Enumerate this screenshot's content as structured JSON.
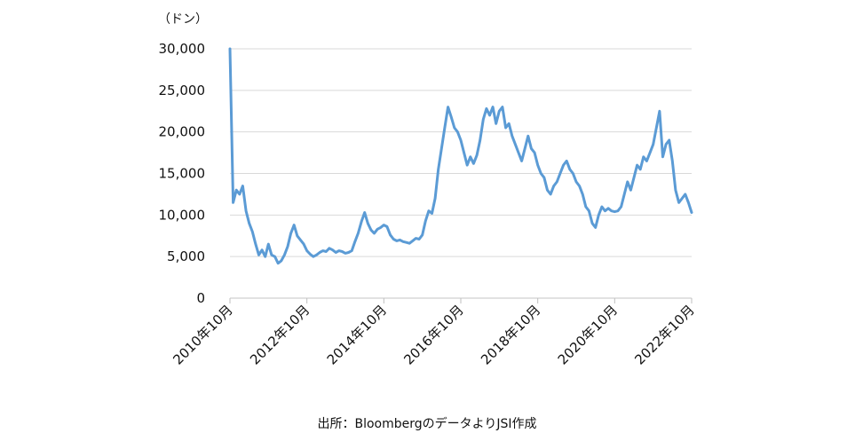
{
  "chart_data": {
    "type": "line",
    "title": "",
    "unit_label": "（ドン）",
    "xlabel": "",
    "ylabel": "",
    "ylim": [
      0,
      30000
    ],
    "yticks": [
      0,
      5000,
      10000,
      15000,
      20000,
      25000,
      30000
    ],
    "ytick_labels": [
      "0",
      "5,000",
      "10,000",
      "15,000",
      "20,000",
      "25,000",
      "30,000"
    ],
    "xlim": [
      "2010-10",
      "2022-10"
    ],
    "xtick_labels": [
      "2010年10月",
      "2012年10月",
      "2014年10月",
      "2016年10月",
      "2018年10月",
      "2020年10月",
      "2022年10月"
    ],
    "grid": "horizontal",
    "legend": "none",
    "line_color": "#5B9BD5",
    "source_note": "出所：BloombergのデータよりJSI作成",
    "series": [
      {
        "x": [
          "2010-10",
          "2010-11",
          "2010-12",
          "2011-01",
          "2011-02",
          "2011-03",
          "2011-04",
          "2011-05",
          "2011-06",
          "2011-07",
          "2011-08",
          "2011-09",
          "2011-10",
          "2011-11",
          "2011-12",
          "2012-01",
          "2012-02",
          "2012-03",
          "2012-04",
          "2012-05",
          "2012-06",
          "2012-07",
          "2012-08",
          "2012-09",
          "2012-10",
          "2012-11",
          "2012-12",
          "2013-01",
          "2013-02",
          "2013-03",
          "2013-04",
          "2013-05",
          "2013-06",
          "2013-07",
          "2013-08",
          "2013-09",
          "2013-10",
          "2013-11",
          "2013-12",
          "2014-01",
          "2014-02",
          "2014-03",
          "2014-04",
          "2014-05",
          "2014-06",
          "2014-07",
          "2014-08",
          "2014-09",
          "2014-10",
          "2014-11",
          "2014-12",
          "2015-01",
          "2015-02",
          "2015-03",
          "2015-04",
          "2015-05",
          "2015-06",
          "2015-07",
          "2015-08",
          "2015-09",
          "2015-10",
          "2015-11",
          "2015-12",
          "2016-01",
          "2016-02",
          "2016-03",
          "2016-04",
          "2016-05",
          "2016-06",
          "2016-07",
          "2016-08",
          "2016-09",
          "2016-10",
          "2016-11",
          "2016-12",
          "2017-01",
          "2017-02",
          "2017-03",
          "2017-04",
          "2017-05",
          "2017-06",
          "2017-07",
          "2017-08",
          "2017-09",
          "2017-10",
          "2017-11",
          "2017-12",
          "2018-01",
          "2018-02",
          "2018-03",
          "2018-04",
          "2018-05",
          "2018-06",
          "2018-07",
          "2018-08",
          "2018-09",
          "2018-10",
          "2018-11",
          "2018-12",
          "2019-01",
          "2019-02",
          "2019-03",
          "2019-04",
          "2019-05",
          "2019-06",
          "2019-07",
          "2019-08",
          "2019-09",
          "2019-10",
          "2019-11",
          "2019-12",
          "2020-01",
          "2020-02",
          "2020-03",
          "2020-04",
          "2020-05",
          "2020-06",
          "2020-07",
          "2020-08",
          "2020-09",
          "2020-10",
          "2020-11",
          "2020-12",
          "2021-01",
          "2021-02",
          "2021-03",
          "2021-04",
          "2021-05",
          "2021-06",
          "2021-07",
          "2021-08",
          "2021-09",
          "2021-10",
          "2021-11",
          "2021-12",
          "2022-01",
          "2022-02",
          "2022-03",
          "2022-04",
          "2022-05",
          "2022-06",
          "2022-07",
          "2022-08",
          "2022-09",
          "2022-10"
        ],
        "values": [
          30000,
          11500,
          13000,
          12500,
          13500,
          10500,
          9000,
          8000,
          6500,
          5200,
          5800,
          5000,
          6500,
          5200,
          5000,
          4200,
          4500,
          5200,
          6200,
          7800,
          8800,
          7500,
          7000,
          6500,
          5700,
          5300,
          5000,
          5200,
          5500,
          5700,
          5600,
          6000,
          5800,
          5500,
          5700,
          5600,
          5400,
          5500,
          5700,
          6800,
          7800,
          9200,
          10300,
          9000,
          8200,
          7800,
          8300,
          8500,
          8800,
          8600,
          7600,
          7100,
          6900,
          7000,
          6800,
          6700,
          6600,
          6900,
          7200,
          7100,
          7600,
          9300,
          10500,
          10200,
          12000,
          15500,
          18000,
          20500,
          23000,
          21800,
          20500,
          20000,
          19000,
          17500,
          16000,
          17000,
          16200,
          17200,
          19000,
          21500,
          22800,
          22000,
          23000,
          21000,
          22500,
          23000,
          20500,
          21000,
          19500,
          18500,
          17500,
          16500,
          18000,
          19500,
          18000,
          17500,
          16000,
          15000,
          14500,
          13000,
          12500,
          13500,
          14000,
          15000,
          16000,
          16500,
          15500,
          15000,
          14000,
          13500,
          12500,
          11000,
          10500,
          9000,
          8500,
          10000,
          11000,
          10500,
          10800,
          10500,
          10400,
          10500,
          11000,
          12500,
          14000,
          13000,
          14500,
          16000,
          15500,
          17000,
          16500,
          17500,
          18500,
          20500,
          22500,
          17000,
          18500,
          19000,
          16500,
          13000,
          11500,
          12000,
          12500,
          11500,
          10300
        ]
      }
    ]
  }
}
